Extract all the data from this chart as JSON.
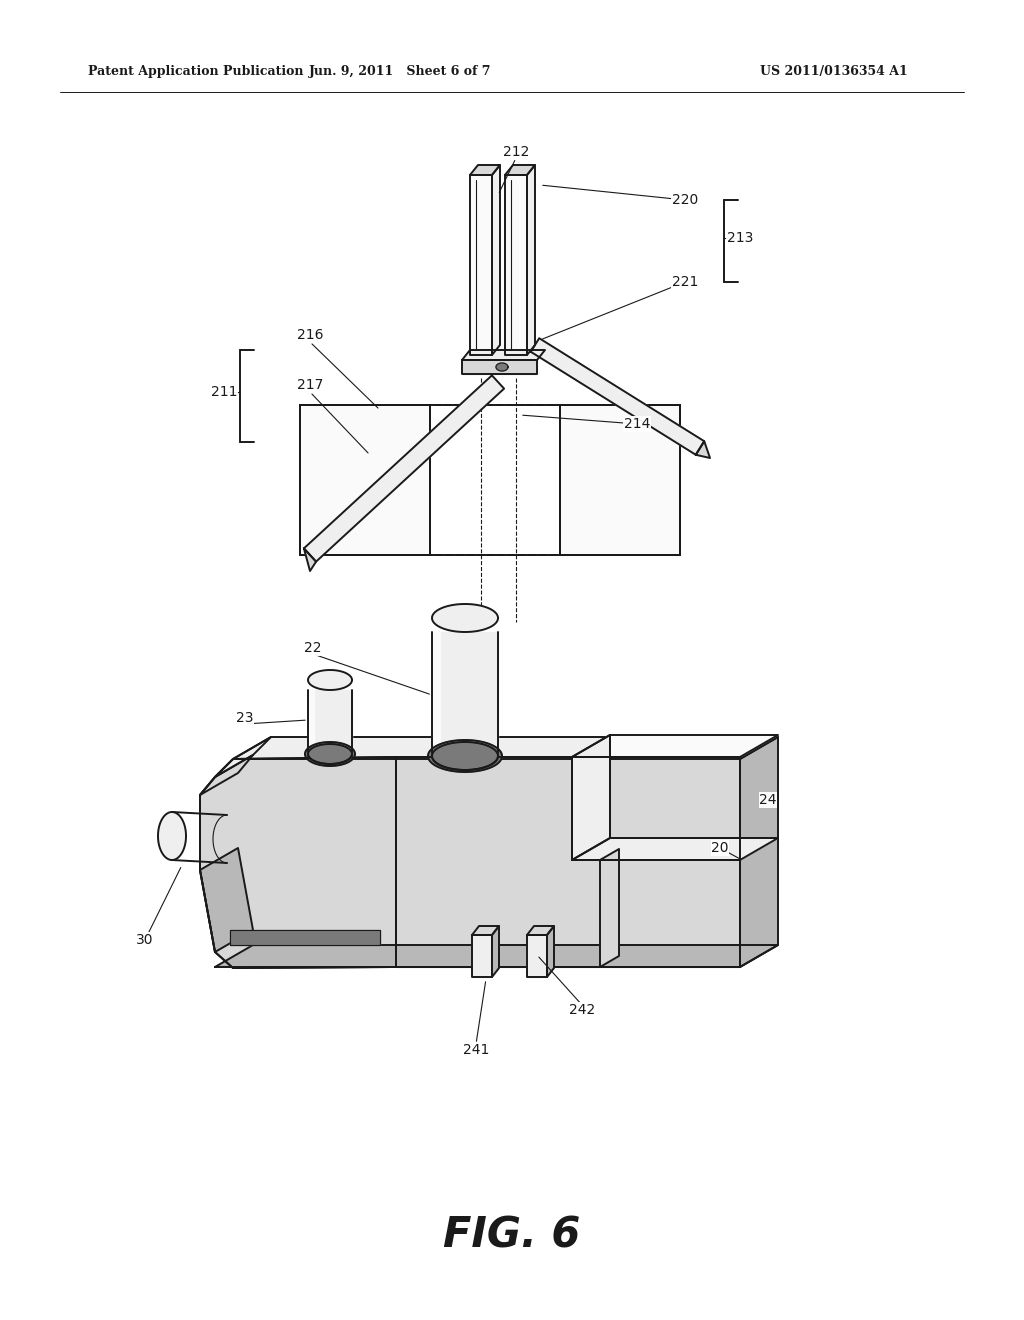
{
  "bg_color": "#ffffff",
  "line_color": "#1a1a1a",
  "header_left": "Patent Application Publication",
  "header_center": "Jun. 9, 2011   Sheet 6 of 7",
  "header_right": "US 2011/0136354 A1",
  "figure_label": "FIG. 6",
  "lw": 1.4,
  "lw_thin": 0.8,
  "fill_white": "#fafafa",
  "fill_light": "#efefef",
  "fill_mid": "#d8d8d8",
  "fill_dark": "#b8b8b8",
  "fill_hole": "#7a7a7a"
}
